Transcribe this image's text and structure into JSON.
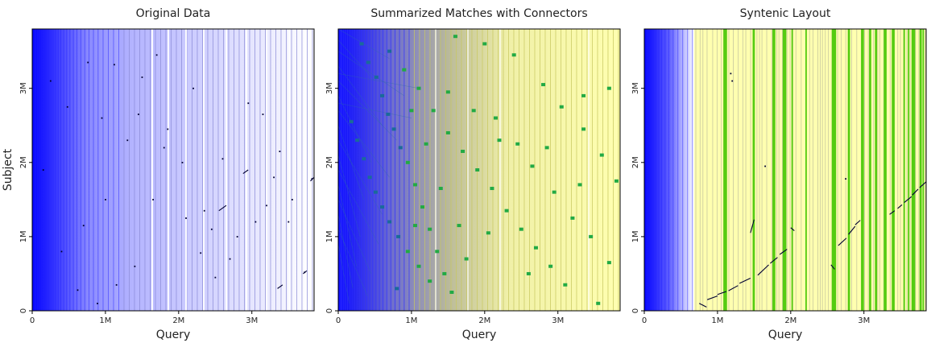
{
  "colors": {
    "lead_blue": "#0000ff",
    "band_light": "#b3b3ff",
    "band_line": "#8c8cd9",
    "yellow_band": "#ffffb0",
    "green_band": "#55cc11",
    "green_point": "#22aa44",
    "teal_point": "#1a6a9a",
    "match_ink": "#000033"
  },
  "chart_data": [
    {
      "type": "scatter",
      "title": "Original Data",
      "xlabel": "Query",
      "ylabel": "Subject",
      "xlim": [
        0,
        3850000
      ],
      "ylim": [
        0,
        3800000
      ],
      "xticks": [
        {
          "value": 0,
          "label": "0"
        },
        {
          "value": 1000000,
          "label": "1M"
        },
        {
          "value": 2000000,
          "label": "2M"
        },
        {
          "value": 3000000,
          "label": "3M"
        }
      ],
      "yticks": [
        {
          "value": 0,
          "label": "0"
        },
        {
          "value": 1000000,
          "label": "1M"
        },
        {
          "value": 2000000,
          "label": "2M"
        },
        {
          "value": 3000000,
          "label": "3M"
        }
      ],
      "points": [
        [
          620000,
          280000
        ],
        [
          890000,
          100000
        ],
        [
          1150000,
          350000
        ],
        [
          1400000,
          600000
        ],
        [
          1650000,
          1500000
        ],
        [
          1850000,
          2450000
        ],
        [
          2100000,
          1250000
        ],
        [
          2300000,
          780000
        ],
        [
          2450000,
          1100000
        ],
        [
          2700000,
          700000
        ],
        [
          2950000,
          2800000
        ],
        [
          3150000,
          2650000
        ],
        [
          3380000,
          2150000
        ],
        [
          3550000,
          1500000
        ],
        [
          3720000,
          520000
        ],
        [
          3820000,
          1780000
        ],
        [
          250000,
          3100000
        ],
        [
          480000,
          2750000
        ],
        [
          760000,
          3350000
        ],
        [
          1120000,
          3320000
        ],
        [
          1500000,
          3150000
        ],
        [
          1800000,
          2200000
        ],
        [
          2050000,
          2000000
        ],
        [
          2350000,
          1350000
        ],
        [
          2600000,
          2050000
        ],
        [
          2800000,
          1000000
        ],
        [
          3050000,
          1200000
        ],
        [
          3300000,
          1800000
        ],
        [
          3500000,
          1200000
        ],
        [
          1300000,
          2300000
        ],
        [
          950000,
          2600000
        ],
        [
          1700000,
          3450000
        ],
        [
          2200000,
          3000000
        ],
        [
          2500000,
          450000
        ],
        [
          3200000,
          1420000
        ],
        [
          150000,
          1900000
        ],
        [
          400000,
          800000
        ],
        [
          700000,
          1150000
        ],
        [
          1000000,
          1500000
        ],
        [
          1450000,
          2650000
        ]
      ],
      "segments": [
        [
          [
            2550000,
            1350000
          ],
          [
            2650000,
            1420000
          ]
        ],
        [
          [
            2880000,
            1850000
          ],
          [
            2950000,
            1900000
          ]
        ],
        [
          [
            3350000,
            300000
          ],
          [
            3420000,
            350000
          ]
        ],
        [
          [
            3700000,
            500000
          ],
          [
            3750000,
            540000
          ]
        ],
        [
          [
            3800000,
            1750000
          ],
          [
            3850000,
            1800000
          ]
        ]
      ]
    },
    {
      "type": "scatter",
      "title": "Summarized Matches with Connectors",
      "xlabel": "Query",
      "ylabel": "",
      "xlim": [
        0,
        3850000
      ],
      "ylim": [
        0,
        3800000
      ],
      "xticks": [
        {
          "value": 0,
          "label": "0"
        },
        {
          "value": 1000000,
          "label": "1M"
        },
        {
          "value": 2000000,
          "label": "2M"
        },
        {
          "value": 3000000,
          "label": "3M"
        }
      ],
      "yticks": [
        {
          "value": 0,
          "label": "0"
        },
        {
          "value": 1000000,
          "label": "1M"
        },
        {
          "value": 2000000,
          "label": "2M"
        },
        {
          "value": 3000000,
          "label": "3M"
        }
      ],
      "points": [
        [
          320000,
          3600000
        ],
        [
          410000,
          3350000
        ],
        [
          520000,
          3150000
        ],
        [
          600000,
          2900000
        ],
        [
          680000,
          2650000
        ],
        [
          760000,
          2450000
        ],
        [
          850000,
          2200000
        ],
        [
          950000,
          2000000
        ],
        [
          1050000,
          1700000
        ],
        [
          1150000,
          1400000
        ],
        [
          1250000,
          1100000
        ],
        [
          1350000,
          800000
        ],
        [
          1450000,
          500000
        ],
        [
          1550000,
          250000
        ],
        [
          180000,
          2550000
        ],
        [
          260000,
          2300000
        ],
        [
          350000,
          2050000
        ],
        [
          430000,
          1800000
        ],
        [
          510000,
          1600000
        ],
        [
          600000,
          1400000
        ],
        [
          700000,
          1200000
        ],
        [
          820000,
          1000000
        ],
        [
          950000,
          800000
        ],
        [
          1100000,
          600000
        ],
        [
          1250000,
          400000
        ],
        [
          700000,
          3500000
        ],
        [
          900000,
          3250000
        ],
        [
          1100000,
          3000000
        ],
        [
          1300000,
          2700000
        ],
        [
          1500000,
          2400000
        ],
        [
          1700000,
          2150000
        ],
        [
          1900000,
          1900000
        ],
        [
          2100000,
          1650000
        ],
        [
          2300000,
          1350000
        ],
        [
          2500000,
          1100000
        ],
        [
          2700000,
          850000
        ],
        [
          2900000,
          600000
        ],
        [
          3100000,
          350000
        ],
        [
          1600000,
          3700000
        ],
        [
          2000000,
          3600000
        ],
        [
          2400000,
          3450000
        ],
        [
          2800000,
          3050000
        ],
        [
          3050000,
          2750000
        ],
        [
          3350000,
          2450000
        ],
        [
          3600000,
          2100000
        ],
        [
          3800000,
          1750000
        ],
        [
          1850000,
          2700000
        ],
        [
          2150000,
          2600000
        ],
        [
          2450000,
          2250000
        ],
        [
          2650000,
          1950000
        ],
        [
          3200000,
          1250000
        ],
        [
          3450000,
          1000000
        ],
        [
          3700000,
          650000
        ],
        [
          3550000,
          100000
        ],
        [
          1000000,
          2700000
        ],
        [
          1200000,
          2250000
        ],
        [
          1400000,
          1650000
        ],
        [
          1650000,
          1150000
        ],
        [
          2200000,
          2300000
        ],
        [
          2600000,
          500000
        ],
        [
          2950000,
          1600000
        ],
        [
          3350000,
          2900000
        ],
        [
          3700000,
          3000000
        ],
        [
          800000,
          300000
        ],
        [
          1050000,
          1150000
        ],
        [
          1500000,
          2950000
        ],
        [
          1750000,
          700000
        ],
        [
          2050000,
          1050000
        ],
        [
          2850000,
          2200000
        ],
        [
          3300000,
          1700000
        ]
      ],
      "connectors": [
        [
          [
            0,
            3800000
          ],
          [
            700000,
            3400000
          ]
        ],
        [
          [
            0,
            3650000
          ],
          [
            500000,
            3100000
          ]
        ],
        [
          [
            0,
            3500000
          ],
          [
            900000,
            2900000
          ]
        ],
        [
          [
            0,
            3300000
          ],
          [
            600000,
            2500000
          ]
        ],
        [
          [
            0,
            3100000
          ],
          [
            800000,
            2300000
          ]
        ],
        [
          [
            0,
            2900000
          ],
          [
            450000,
            2000000
          ]
        ],
        [
          [
            0,
            2700000
          ],
          [
            700000,
            1800000
          ]
        ],
        [
          [
            0,
            2500000
          ],
          [
            350000,
            1500000
          ]
        ],
        [
          [
            0,
            2300000
          ],
          [
            600000,
            1300000
          ]
        ],
        [
          [
            0,
            2100000
          ],
          [
            300000,
            1000000
          ]
        ],
        [
          [
            0,
            1900000
          ],
          [
            550000,
            900000
          ]
        ],
        [
          [
            0,
            1700000
          ],
          [
            250000,
            600000
          ]
        ],
        [
          [
            0,
            1500000
          ],
          [
            450000,
            500000
          ]
        ],
        [
          [
            0,
            1300000
          ],
          [
            200000,
            300000
          ]
        ],
        [
          [
            0,
            1100000
          ],
          [
            400000,
            200000
          ]
        ],
        [
          [
            0,
            900000
          ],
          [
            150000,
            100000
          ]
        ],
        [
          [
            0,
            2800000
          ],
          [
            1000000,
            2600000
          ]
        ],
        [
          [
            0,
            3200000
          ],
          [
            1100000,
            3000000
          ]
        ]
      ]
    },
    {
      "type": "line",
      "title": "Syntenic Layout",
      "xlabel": "Query",
      "ylabel": "",
      "xlim": [
        0,
        3850000
      ],
      "ylim": [
        0,
        3800000
      ],
      "xticks": [
        {
          "value": 0,
          "label": "0"
        },
        {
          "value": 1000000,
          "label": "1M"
        },
        {
          "value": 2000000,
          "label": "2M"
        },
        {
          "value": 3000000,
          "label": "3M"
        }
      ],
      "yticks": [
        {
          "value": 0,
          "label": "0"
        },
        {
          "value": 1000000,
          "label": "1M"
        },
        {
          "value": 2000000,
          "label": "2M"
        },
        {
          "value": 3000000,
          "label": "3M"
        }
      ],
      "green_bands": [
        [
          1080000,
          1130000
        ],
        [
          1480000,
          1510000
        ],
        [
          1750000,
          1790000
        ],
        [
          1890000,
          1940000
        ],
        [
          2010000,
          2030000
        ],
        [
          2200000,
          2220000
        ],
        [
          2560000,
          2620000
        ],
        [
          2780000,
          2810000
        ],
        [
          2960000,
          3000000
        ],
        [
          3070000,
          3100000
        ],
        [
          3150000,
          3180000
        ],
        [
          3270000,
          3310000
        ],
        [
          3380000,
          3420000
        ],
        [
          3540000,
          3560000
        ],
        [
          3600000,
          3620000
        ],
        [
          3650000,
          3700000
        ],
        [
          3760000,
          3790000
        ],
        [
          3800000,
          3820000
        ]
      ],
      "segments": [
        [
          [
            750000,
            100000
          ],
          [
            850000,
            50000
          ]
        ],
        [
          [
            860000,
            150000
          ],
          [
            1000000,
            200000
          ]
        ],
        [
          [
            1000000,
            220000
          ],
          [
            1120000,
            260000
          ]
        ],
        [
          [
            1150000,
            270000
          ],
          [
            1280000,
            340000
          ]
        ],
        [
          [
            1300000,
            370000
          ],
          [
            1450000,
            440000
          ]
        ],
        [
          [
            1450000,
            1050000
          ],
          [
            1500000,
            1230000
          ]
        ],
        [
          [
            1550000,
            480000
          ],
          [
            1700000,
            620000
          ]
        ],
        [
          [
            1720000,
            640000
          ],
          [
            1820000,
            720000
          ]
        ],
        [
          [
            1850000,
            760000
          ],
          [
            1950000,
            830000
          ]
        ],
        [
          [
            2000000,
            1120000
          ],
          [
            2050000,
            1080000
          ]
        ],
        [
          [
            2550000,
            620000
          ],
          [
            2600000,
            560000
          ]
        ],
        [
          [
            2650000,
            880000
          ],
          [
            2760000,
            980000
          ]
        ],
        [
          [
            2790000,
            1030000
          ],
          [
            2880000,
            1140000
          ]
        ],
        [
          [
            2880000,
            1160000
          ],
          [
            2950000,
            1220000
          ]
        ],
        [
          [
            3350000,
            1300000
          ],
          [
            3420000,
            1350000
          ]
        ],
        [
          [
            3460000,
            1380000
          ],
          [
            3520000,
            1430000
          ]
        ],
        [
          [
            3550000,
            1460000
          ],
          [
            3650000,
            1540000
          ]
        ],
        [
          [
            3660000,
            1560000
          ],
          [
            3740000,
            1640000
          ]
        ],
        [
          [
            3760000,
            1660000
          ],
          [
            3850000,
            1740000
          ]
        ]
      ],
      "points": [
        [
          1180000,
          3200000
        ],
        [
          1650000,
          1950000
        ],
        [
          2750000,
          1780000
        ],
        [
          1200000,
          3100000
        ]
      ]
    }
  ]
}
